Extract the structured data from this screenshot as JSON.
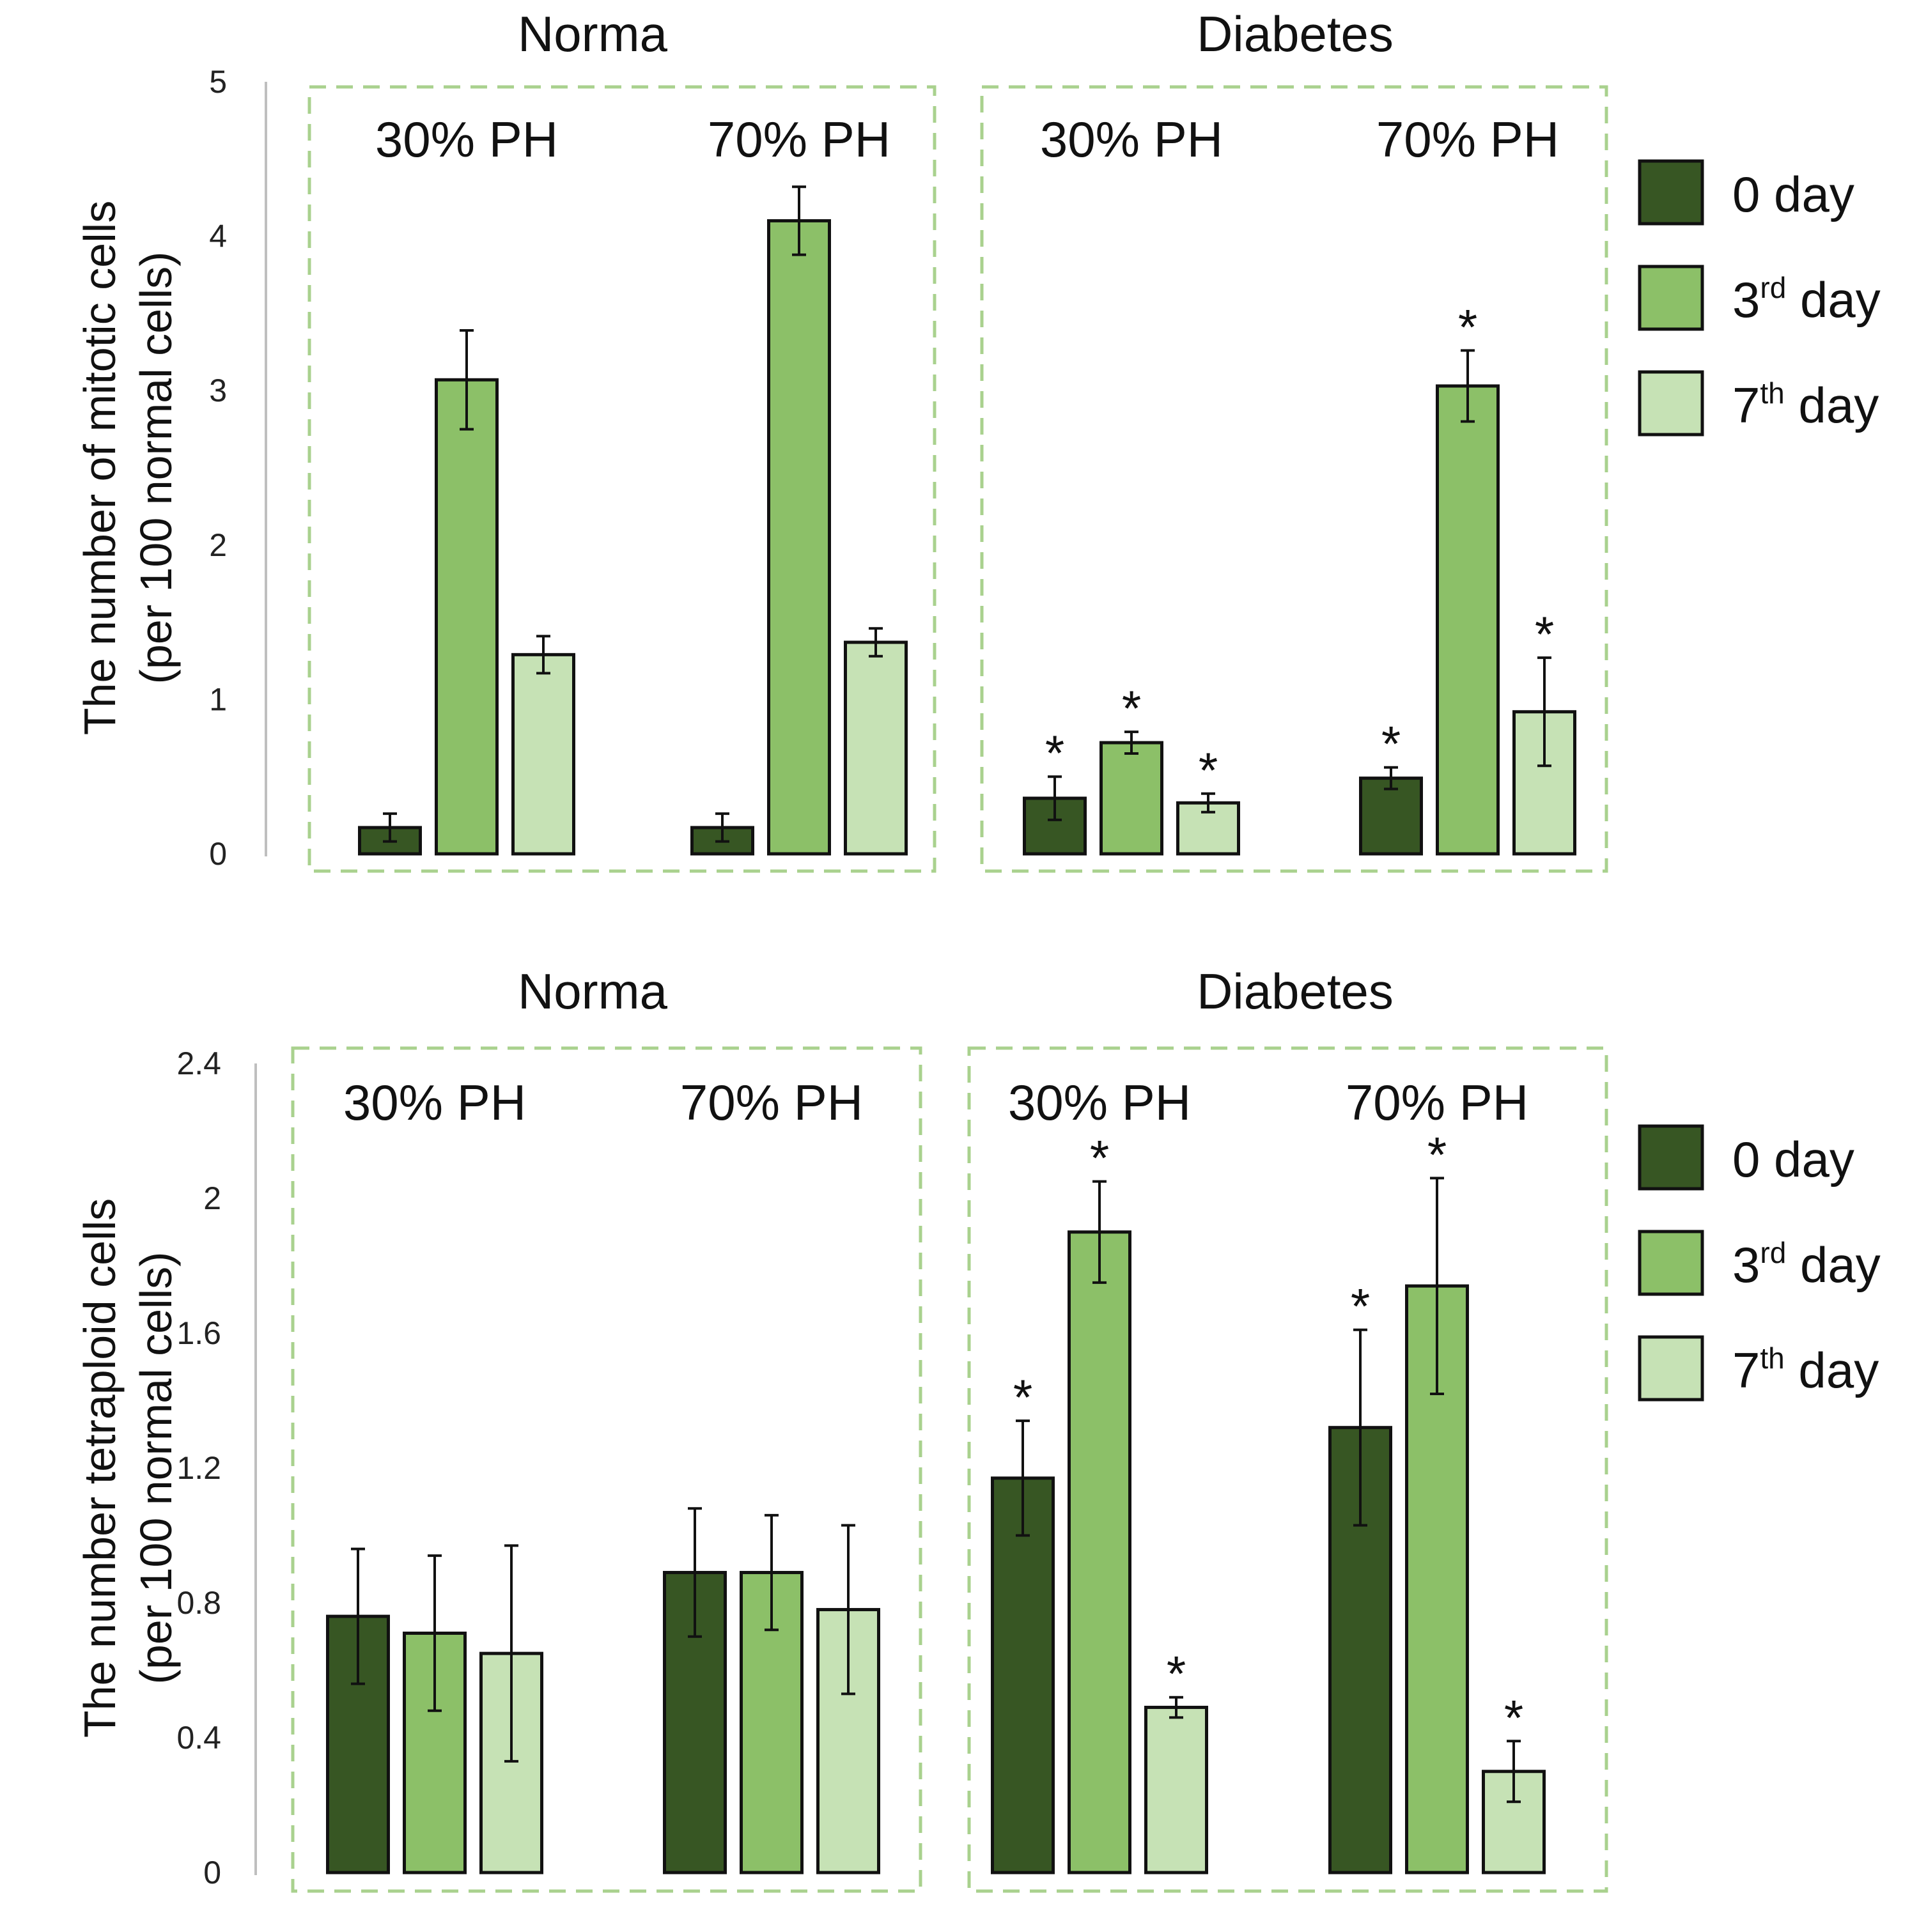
{
  "colors": {
    "day0": "#375623",
    "day3": "#8cc068",
    "day7": "#c6e2b5",
    "frame": "#a9d18e"
  },
  "legend": [
    {
      "key": "day0",
      "text": "0 day",
      "sup": ""
    },
    {
      "key": "day3",
      "text": "3 day",
      "sup": "rd"
    },
    {
      "key": "day7",
      "text": "7 day",
      "sup": "th"
    }
  ],
  "chart_data": [
    {
      "type": "bar",
      "ylabel": [
        "The number of mitotic cells",
        "(per 100 normal cells)"
      ],
      "ylim": [
        0,
        5
      ],
      "yticks": [
        "0",
        "1",
        "2",
        "3",
        "4",
        "5"
      ],
      "ytick_values": [
        0,
        1,
        2,
        3,
        4,
        5
      ],
      "groups": [
        {
          "name": "Norma",
          "subgroups": [
            {
              "name": "30% PH",
              "values": [
                0.17,
                3.07,
                1.29
              ],
              "errors": [
                0.09,
                0.32,
                0.12
              ],
              "sig": [
                "",
                "",
                ""
              ]
            },
            {
              "name": "70% PH",
              "values": [
                0.17,
                4.1,
                1.37
              ],
              "errors": [
                0.09,
                0.22,
                0.09
              ],
              "sig": [
                "",
                "",
                ""
              ]
            }
          ]
        },
        {
          "name": "Diabetes",
          "subgroups": [
            {
              "name": "30% PH",
              "values": [
                0.36,
                0.72,
                0.33
              ],
              "errors": [
                0.14,
                0.07,
                0.06
              ],
              "sig": [
                "*",
                "*",
                "*"
              ]
            },
            {
              "name": "70% PH",
              "values": [
                0.49,
                3.03,
                0.92
              ],
              "errors": [
                0.07,
                0.23,
                0.35
              ],
              "sig": [
                "*",
                "*",
                "*"
              ]
            }
          ]
        }
      ]
    },
    {
      "type": "bar",
      "ylabel": [
        "The number tetraploid cells",
        "(per 100 normal cells)"
      ],
      "ylim": [
        0,
        2.4
      ],
      "yticks": [
        "0",
        "0.4",
        "0.8",
        "1.2",
        "1.6",
        "2",
        "2.4"
      ],
      "ytick_values": [
        0,
        0.4,
        0.8,
        1.2,
        1.6,
        2,
        2.4
      ],
      "groups": [
        {
          "name": "Norma",
          "subgroups": [
            {
              "name": "30% PH",
              "values": [
                0.76,
                0.71,
                0.65
              ],
              "errors": [
                0.2,
                0.23,
                0.32
              ],
              "sig": [
                "",
                "",
                ""
              ]
            },
            {
              "name": "70% PH",
              "values": [
                0.89,
                0.89,
                0.78
              ],
              "errors": [
                0.19,
                0.17,
                0.25
              ],
              "sig": [
                "",
                "",
                ""
              ]
            }
          ]
        },
        {
          "name": "Diabetes",
          "subgroups": [
            {
              "name": "30% PH",
              "values": [
                1.17,
                1.9,
                0.49
              ],
              "errors": [
                0.17,
                0.15,
                0.03
              ],
              "sig": [
                "*",
                "*",
                "*"
              ]
            },
            {
              "name": "70% PH",
              "values": [
                1.32,
                1.74,
                0.3
              ],
              "errors": [
                0.29,
                0.32,
                0.09
              ],
              "sig": [
                "*",
                "*",
                "*"
              ]
            }
          ]
        }
      ]
    }
  ]
}
